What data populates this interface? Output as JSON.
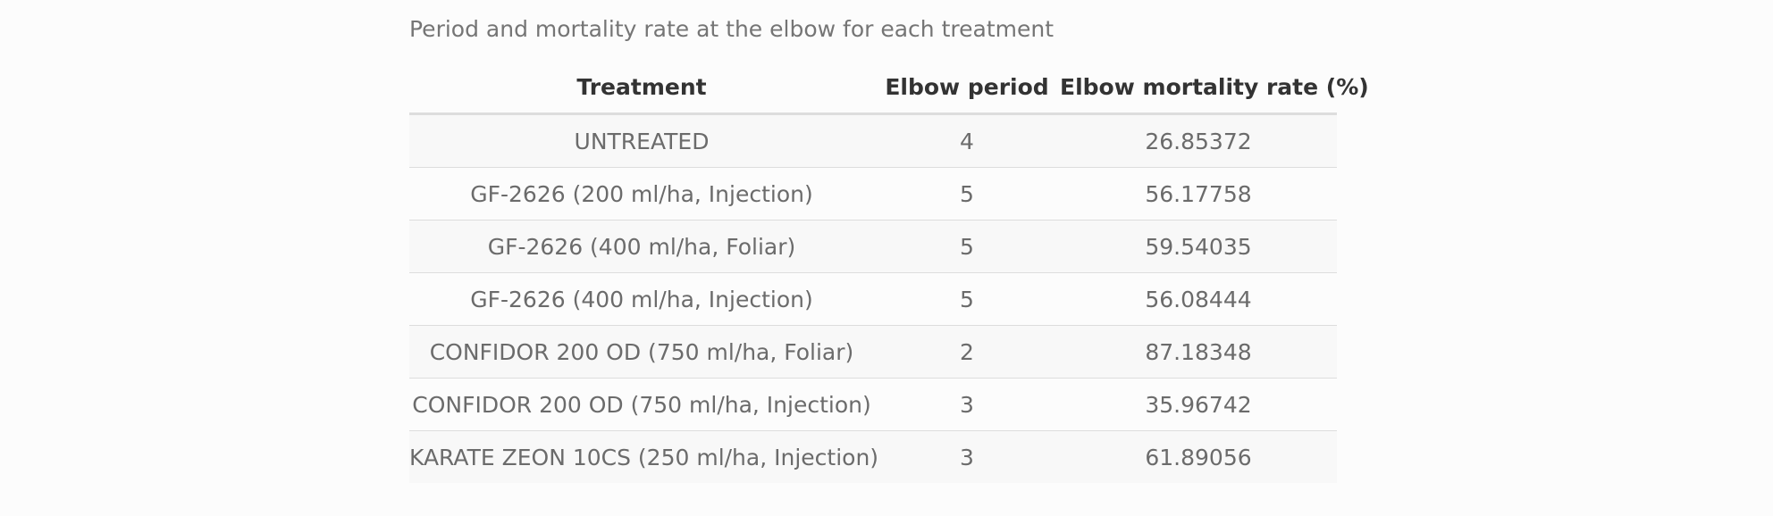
{
  "caption": "Period and mortality rate at the elbow for each treatment",
  "table": {
    "headers": [
      "Treatment",
      "Elbow period",
      "Elbow mortality rate (%)"
    ],
    "rows": [
      [
        "UNTREATED",
        "4",
        "26.85372"
      ],
      [
        "GF-2626 (200 ml/ha, Injection)",
        "5",
        "56.17758"
      ],
      [
        "GF-2626 (400 ml/ha, Foliar)",
        "5",
        "59.54035"
      ],
      [
        "GF-2626 (400 ml/ha, Injection)",
        "5",
        "56.08444"
      ],
      [
        "CONFIDOR 200 OD (750 ml/ha, Foliar)",
        "2",
        "87.18348"
      ],
      [
        "CONFIDOR 200 OD (750 ml/ha, Injection)",
        "3",
        "35.96742"
      ],
      [
        "KARATE ZEON 10CS (250 ml/ha, Injection)",
        "3",
        "61.89056"
      ]
    ]
  }
}
